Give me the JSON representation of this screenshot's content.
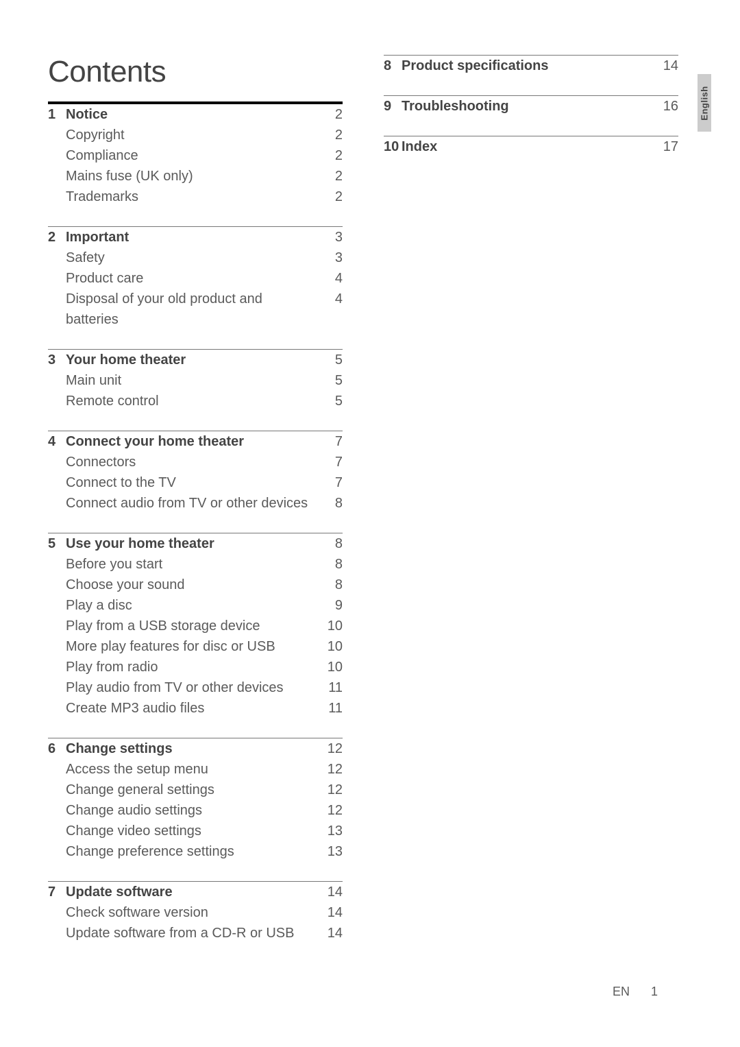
{
  "title": "Contents",
  "side_tab": "English",
  "footer": {
    "label": "EN",
    "page": "1"
  },
  "sections_left": [
    {
      "num": "1",
      "title": "Notice",
      "page": "2",
      "items": [
        {
          "label": "Copyright",
          "page": "2"
        },
        {
          "label": "Compliance",
          "page": "2"
        },
        {
          "label": "Mains fuse (UK only)",
          "page": "2"
        },
        {
          "label": "Trademarks",
          "page": "2"
        }
      ]
    },
    {
      "num": "2",
      "title": "Important",
      "page": "3",
      "items": [
        {
          "label": "Safety",
          "page": "3"
        },
        {
          "label": "Product care",
          "page": "4"
        },
        {
          "label": "Disposal of your old product and batteries",
          "page": "4"
        }
      ]
    },
    {
      "num": "3",
      "title": "Your home theater",
      "page": "5",
      "items": [
        {
          "label": "Main unit",
          "page": "5"
        },
        {
          "label": "Remote control",
          "page": "5"
        }
      ]
    },
    {
      "num": "4",
      "title": "Connect your home theater",
      "page": "7",
      "items": [
        {
          "label": "Connectors",
          "page": "7"
        },
        {
          "label": "Connect to the TV",
          "page": "7"
        },
        {
          "label": "Connect audio from TV or other devices",
          "page": "8"
        }
      ]
    },
    {
      "num": "5",
      "title": "Use your home theater",
      "page": "8",
      "items": [
        {
          "label": "Before you start",
          "page": "8"
        },
        {
          "label": "Choose your sound",
          "page": "8"
        },
        {
          "label": "Play a disc",
          "page": "9"
        },
        {
          "label": "Play from a USB storage device",
          "page": "10"
        },
        {
          "label": "More play features for disc or USB",
          "page": "10"
        },
        {
          "label": "Play from radio",
          "page": "10"
        },
        {
          "label": "Play audio from TV or other devices",
          "page": "11"
        },
        {
          "label": "Create MP3 audio files",
          "page": "11"
        }
      ]
    },
    {
      "num": "6",
      "title": "Change settings",
      "page": "12",
      "items": [
        {
          "label": "Access the setup menu",
          "page": "12"
        },
        {
          "label": "Change general settings",
          "page": "12"
        },
        {
          "label": "Change audio settings",
          "page": "12"
        },
        {
          "label": "Change video settings",
          "page": "13"
        },
        {
          "label": "Change preference settings",
          "page": "13"
        }
      ]
    },
    {
      "num": "7",
      "title": "Update software",
      "page": "14",
      "items": [
        {
          "label": "Check software version",
          "page": "14"
        },
        {
          "label": "Update software from a CD-R or USB",
          "page": "14"
        }
      ]
    }
  ],
  "sections_right": [
    {
      "num": "8",
      "title": "Product specifications",
      "page": "14",
      "items": []
    },
    {
      "num": "9",
      "title": "Troubleshooting",
      "page": "16",
      "items": []
    },
    {
      "num": "10",
      "title": "Index",
      "page": "17",
      "items": []
    }
  ]
}
